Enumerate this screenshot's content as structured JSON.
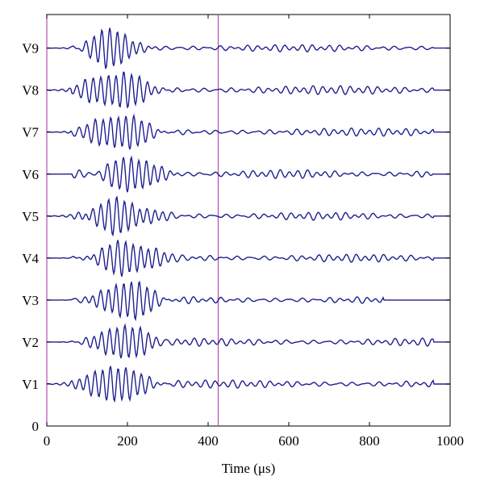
{
  "chart_data": {
    "type": "line",
    "title": "",
    "xlabel": "Time (μs)",
    "ylabel": "",
    "xlim": [
      0,
      1000
    ],
    "x_ticks": [
      "0",
      "200",
      "400",
      "600",
      "800",
      "1000"
    ],
    "y_ticks": [
      "0",
      "V1",
      "V2",
      "V3",
      "V4",
      "V5",
      "V6",
      "V7",
      "V8",
      "V9"
    ],
    "markers": [
      {
        "x": 0,
        "color": "#b04fb0"
      },
      {
        "x": 425,
        "color": "#b04fb0"
      }
    ],
    "series_color": "#1f1f8f",
    "grid": false,
    "legend": "none",
    "series": [
      {
        "name": "V1",
        "offset": 1,
        "packet_center": 170,
        "packet_width": 80,
        "packet_amp": 0.42,
        "freq": 0.052,
        "phase": 0.3,
        "tail_amp": 0.07
      },
      {
        "name": "V2",
        "offset": 2,
        "packet_center": 190,
        "packet_width": 70,
        "packet_amp": 0.4,
        "freq": 0.052,
        "phase": 1.1,
        "tail_amp": 0.07
      },
      {
        "name": "V3",
        "offset": 3,
        "packet_center": 200,
        "packet_width": 70,
        "packet_amp": 0.45,
        "freq": 0.052,
        "phase": 2.0,
        "tail_amp": 0.06
      },
      {
        "name": "V4",
        "offset": 4,
        "packet_center": 200,
        "packet_width": 75,
        "packet_amp": 0.4,
        "freq": 0.052,
        "phase": 0.7,
        "tail_amp": 0.07
      },
      {
        "name": "V5",
        "offset": 5,
        "packet_center": 180,
        "packet_width": 80,
        "packet_amp": 0.38,
        "freq": 0.052,
        "phase": 1.6,
        "tail_amp": 0.07
      },
      {
        "name": "V6",
        "offset": 6,
        "packet_center": 215,
        "packet_width": 65,
        "packet_amp": 0.42,
        "freq": 0.052,
        "phase": 2.4,
        "tail_amp": 0.08
      },
      {
        "name": "V7",
        "offset": 7,
        "packet_center": 180,
        "packet_width": 75,
        "packet_amp": 0.42,
        "freq": 0.052,
        "phase": 0.1,
        "tail_amp": 0.07
      },
      {
        "name": "V8",
        "offset": 8,
        "packet_center": 175,
        "packet_width": 80,
        "packet_amp": 0.43,
        "freq": 0.052,
        "phase": 1.9,
        "tail_amp": 0.08
      },
      {
        "name": "V9",
        "offset": 9,
        "packet_center": 160,
        "packet_width": 60,
        "packet_amp": 0.45,
        "freq": 0.052,
        "phase": 0.9,
        "tail_amp": 0.06
      }
    ]
  }
}
